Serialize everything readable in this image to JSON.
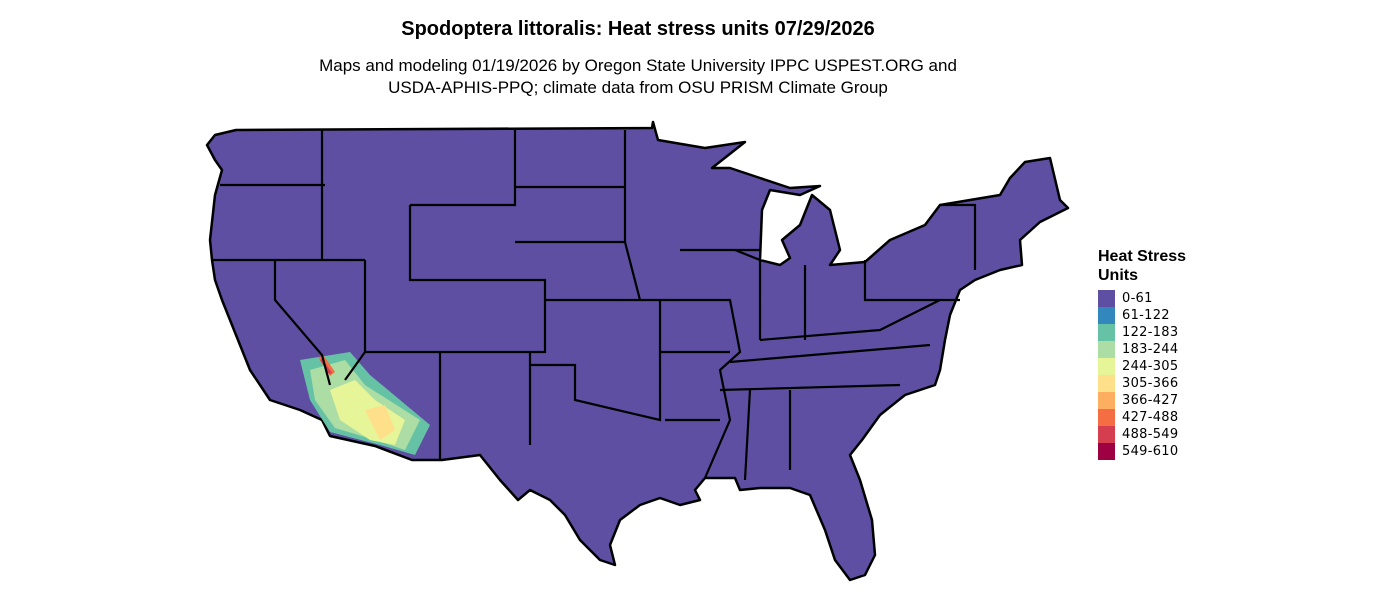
{
  "title": "Spodoptera littoralis: Heat stress units 07/29/2026",
  "subtitle_lines": [
    "Maps and modeling 01/19/2026 by Oregon State University IPPC USPEST.ORG and",
    "USDA-APHIS-PPQ; climate data from OSU PRISM Climate Group"
  ],
  "legend": {
    "title": "Heat Stress Units",
    "items": [
      {
        "label": "0-61",
        "color": "#5E4FA2"
      },
      {
        "label": "61-122",
        "color": "#3288BD"
      },
      {
        "label": "122-183",
        "color": "#66C2A5"
      },
      {
        "label": "183-244",
        "color": "#ABDDA4"
      },
      {
        "label": "244-305",
        "color": "#E6F598"
      },
      {
        "label": "305-366",
        "color": "#FEE08B"
      },
      {
        "label": "366-427",
        "color": "#FDAE61"
      },
      {
        "label": "427-488",
        "color": "#F46D43"
      },
      {
        "label": "488-549",
        "color": "#D53E4F"
      },
      {
        "label": "549-610",
        "color": "#9E0142"
      }
    ]
  },
  "map": {
    "region": "Contiguous United States",
    "base_color": "#5E4FA2",
    "border_color": "#000000"
  }
}
